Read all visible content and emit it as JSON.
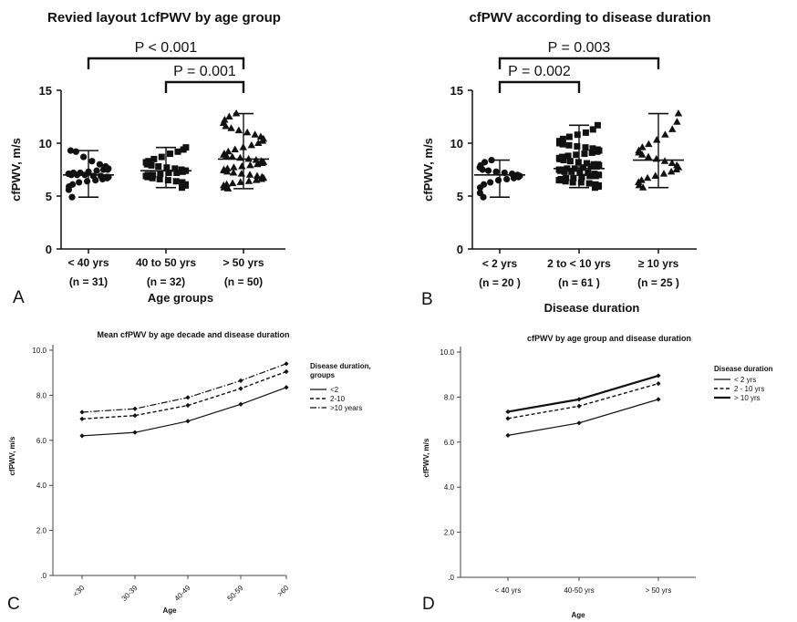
{
  "chart_data": [
    {
      "panel": "A",
      "type": "scatter",
      "title": "Revied layout 1cfPWV by age group",
      "xlabel": "Age groups",
      "ylabel": "cfPWV, m/s",
      "ylim": [
        0,
        15
      ],
      "yticks": [
        0,
        5,
        10,
        15
      ],
      "categories": [
        "< 40 yrs",
        "40 to 50 yrs",
        "> 50 yrs"
      ],
      "counts": [
        "(n = 31)",
        "(n = 32)",
        "(n = 50)"
      ],
      "markers": [
        "circle",
        "square",
        "triangle"
      ],
      "summary": [
        {
          "mean": 7.0,
          "min": 4.9,
          "max": 9.3
        },
        {
          "mean": 7.4,
          "min": 5.8,
          "max": 9.6
        },
        {
          "mean": 8.5,
          "min": 5.7,
          "max": 12.8
        }
      ],
      "points": [
        [
          4.9,
          5.6,
          5.9,
          6.1,
          6.3,
          6.4,
          6.5,
          6.6,
          6.7,
          6.8,
          6.8,
          6.9,
          6.9,
          7.0,
          7.0,
          7.0,
          7.1,
          7.1,
          7.2,
          7.2,
          7.3,
          7.4,
          7.5,
          7.5,
          7.6,
          7.8,
          8.0,
          8.3,
          8.7,
          9.2,
          9.3
        ],
        [
          5.8,
          6.0,
          6.1,
          6.3,
          6.4,
          6.5,
          6.6,
          6.7,
          6.8,
          6.9,
          7.0,
          7.0,
          7.1,
          7.2,
          7.2,
          7.3,
          7.4,
          7.4,
          7.5,
          7.6,
          7.7,
          7.8,
          7.9,
          8.0,
          8.2,
          8.3,
          8.5,
          8.7,
          9.0,
          9.2,
          9.4,
          9.6
        ],
        [
          5.7,
          5.8,
          6.0,
          6.1,
          6.2,
          6.3,
          6.4,
          6.5,
          6.6,
          6.7,
          6.8,
          6.9,
          7.0,
          7.1,
          7.2,
          7.3,
          7.4,
          7.5,
          7.6,
          7.7,
          7.8,
          7.9,
          8.0,
          8.1,
          8.2,
          8.3,
          8.4,
          8.5,
          8.6,
          8.7,
          8.8,
          8.9,
          9.0,
          9.2,
          9.4,
          9.6,
          9.8,
          10.0,
          10.2,
          10.4,
          10.6,
          10.8,
          11.0,
          11.2,
          11.4,
          11.6,
          11.9,
          12.2,
          12.5,
          12.8
        ]
      ],
      "comparisons": [
        {
          "label": "P < 0.001",
          "from": 0,
          "to": 2,
          "level": 0
        },
        {
          "label": "P = 0.001",
          "from": 1,
          "to": 2,
          "level": 1
        }
      ]
    },
    {
      "panel": "B",
      "type": "scatter",
      "title": "cfPWV according to disease duration",
      "xlabel": "Disease duration",
      "ylabel": "cfPWV, m/s",
      "ylim": [
        0,
        15
      ],
      "yticks": [
        0,
        5,
        10,
        15
      ],
      "categories": [
        "< 2 yrs",
        "2 to < 10 yrs",
        "≥ 10 yrs"
      ],
      "counts": [
        "(n = 20 )",
        "(n = 61 )",
        "(n = 25 )"
      ],
      "markers": [
        "circle",
        "square",
        "triangle"
      ],
      "summary": [
        {
          "mean": 7.0,
          "min": 4.9,
          "max": 8.4
        },
        {
          "mean": 7.6,
          "min": 5.8,
          "max": 11.7
        },
        {
          "mean": 8.4,
          "min": 5.8,
          "max": 12.8
        }
      ],
      "points": [
        [
          4.9,
          5.3,
          5.8,
          6.1,
          6.3,
          6.5,
          6.6,
          6.7,
          6.8,
          6.9,
          7.0,
          7.1,
          7.2,
          7.3,
          7.4,
          7.5,
          7.7,
          7.9,
          8.2,
          8.4
        ],
        [
          5.8,
          5.9,
          6.0,
          6.1,
          6.2,
          6.3,
          6.3,
          6.4,
          6.5,
          6.5,
          6.6,
          6.7,
          6.7,
          6.8,
          6.9,
          6.9,
          7.0,
          7.0,
          7.1,
          7.2,
          7.2,
          7.3,
          7.3,
          7.4,
          7.5,
          7.5,
          7.6,
          7.6,
          7.7,
          7.8,
          7.8,
          7.9,
          8.0,
          8.0,
          8.1,
          8.2,
          8.3,
          8.4,
          8.5,
          8.6,
          8.7,
          8.8,
          8.9,
          9.0,
          9.1,
          9.2,
          9.3,
          9.4,
          9.5,
          9.6,
          9.7,
          9.8,
          9.9,
          10.0,
          10.2,
          10.4,
          10.6,
          10.8,
          11.0,
          11.3,
          11.7
        ],
        [
          5.8,
          6.0,
          6.3,
          6.5,
          6.7,
          6.9,
          7.1,
          7.3,
          7.5,
          7.7,
          7.9,
          8.1,
          8.3,
          8.5,
          8.7,
          8.9,
          9.1,
          9.3,
          9.6,
          9.9,
          10.3,
          10.8,
          11.3,
          12.0,
          12.8
        ]
      ],
      "comparisons": [
        {
          "label": "P = 0.002",
          "from": 0,
          "to": 1,
          "level": 1
        },
        {
          "label": "P = 0.003",
          "from": 0,
          "to": 2,
          "level": 0
        }
      ]
    },
    {
      "panel": "C",
      "type": "line",
      "title": "Mean cfPWV by age decade and disease duration",
      "xlabel": "Age",
      "ylabel": "cfPWV, m/s",
      "ylim": [
        0,
        10
      ],
      "ytick_labels": [
        ".0",
        "2.0",
        "4.0",
        "6.0",
        "8.0",
        "10.0"
      ],
      "yticks": [
        0,
        2,
        4,
        6,
        8,
        10
      ],
      "categories": [
        "<30",
        "30-39",
        "40-49",
        "50-59",
        ">60"
      ],
      "legend_title": "Disease duration, groups",
      "series": [
        {
          "name": "<2",
          "style": "solid",
          "values": [
            6.2,
            6.35,
            6.85,
            7.6,
            8.35
          ]
        },
        {
          "name": "2-10",
          "style": "dashed",
          "values": [
            6.95,
            7.1,
            7.55,
            8.3,
            9.05
          ]
        },
        {
          "name": ">10 years",
          "style": "dashdot",
          "values": [
            7.25,
            7.4,
            7.9,
            8.65,
            9.4
          ]
        }
      ]
    },
    {
      "panel": "D",
      "type": "line",
      "title": "cfPWV by age group and disease duration",
      "xlabel": "Age",
      "ylabel": "cfPWV, m/s",
      "ylim": [
        0,
        10
      ],
      "ytick_labels": [
        ".0",
        "2.0",
        "4.0",
        "6.0",
        "8.0",
        "10.0"
      ],
      "yticks": [
        0,
        2,
        4,
        6,
        8,
        10
      ],
      "categories": [
        "< 40 yrs",
        "40-50 yrs",
        "> 50 yrs"
      ],
      "legend_title": "Disease duration",
      "series": [
        {
          "name": "< 2 yrs",
          "style": "solid",
          "values": [
            6.3,
            6.85,
            7.9
          ]
        },
        {
          "name": "2 - 10 yrs",
          "style": "dashed",
          "values": [
            7.05,
            7.6,
            8.6
          ]
        },
        {
          "name": "> 10 yrs",
          "style": "thick",
          "values": [
            7.35,
            7.9,
            8.95
          ]
        }
      ]
    }
  ]
}
